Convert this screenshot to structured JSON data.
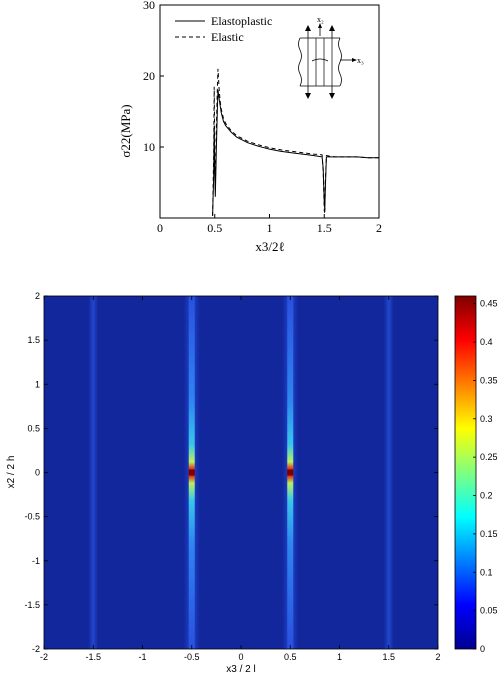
{
  "chart_data": [
    {
      "type": "line",
      "xlabel": "x3/2ℓ",
      "ylabel": "σ22(MPa)",
      "xlim": [
        0,
        2
      ],
      "ylim": [
        0,
        30
      ],
      "xticks": [
        "0",
        "0.5",
        "1",
        "1.5",
        "2"
      ],
      "yticks": [
        "10",
        "20",
        "30"
      ],
      "grid": false,
      "legend": "top-left",
      "series": [
        {
          "name": "Elastoplastic",
          "style": "solid",
          "x": [
            0.48,
            0.49,
            0.495,
            0.5,
            0.505,
            0.515,
            0.525,
            0.53,
            0.54,
            0.55,
            0.56,
            0.58,
            0.6,
            0.65,
            0.7,
            0.8,
            0.9,
            1.0,
            1.1,
            1.2,
            1.3,
            1.4,
            1.48,
            1.49,
            1.5,
            1.505,
            1.51,
            1.52,
            1.55,
            1.6,
            1.7,
            1.8,
            1.9,
            2.0
          ],
          "y": [
            0.3,
            6.0,
            13.0,
            6.0,
            3.0,
            10.0,
            16.0,
            18.0,
            16.8,
            15.8,
            14.8,
            13.6,
            13.0,
            12.1,
            11.4,
            10.6,
            10.1,
            9.7,
            9.4,
            9.2,
            9.0,
            8.8,
            8.6,
            7.0,
            2.0,
            1.2,
            4.0,
            8.6,
            8.6,
            8.6,
            8.6,
            8.6,
            8.5,
            8.5
          ]
        },
        {
          "name": "Elastic",
          "style": "dashed",
          "x": [
            0.48,
            0.49,
            0.495,
            0.5,
            0.505,
            0.515,
            0.525,
            0.53,
            0.54,
            0.55,
            0.56,
            0.58,
            0.6,
            0.65,
            0.7,
            0.8,
            0.9,
            1.0,
            1.1,
            1.2,
            1.3,
            1.4,
            1.48,
            1.49,
            1.5,
            1.505,
            1.51,
            1.52,
            1.55,
            1.6,
            1.7,
            1.8,
            1.9,
            2.0
          ],
          "y": [
            0.3,
            9.0,
            18.5,
            8.0,
            4.0,
            13.0,
            19.0,
            21.0,
            18.2,
            16.4,
            15.3,
            14.0,
            13.3,
            12.3,
            11.6,
            10.8,
            10.3,
            9.9,
            9.6,
            9.4,
            9.2,
            9.0,
            8.9,
            6.5,
            1.0,
            0.6,
            5.0,
            8.8,
            8.7,
            8.6,
            8.6,
            8.6,
            8.5,
            8.5
          ]
        }
      ],
      "inset": {
        "label_x2": "x₂",
        "label_x3": "x₃"
      }
    },
    {
      "type": "heatmap",
      "xlabel": "x3 / 2 l",
      "ylabel": "x2 / 2 h",
      "xlim": [
        -2,
        2
      ],
      "ylim": [
        -2,
        2
      ],
      "xticks": [
        "-2",
        "-1.5",
        "-1",
        "-0.5",
        "0",
        "0.5",
        "1",
        "1.5",
        "2"
      ],
      "yticks": [
        "-2",
        "-1.5",
        "-1",
        "-0.5",
        "0",
        "0.5",
        "1",
        "1.5",
        "2"
      ],
      "colorbar": {
        "min": 0,
        "max": 0.46,
        "ticks": [
          "0",
          "0.05",
          "0.1",
          "0.15",
          "0.2",
          "0.25",
          "0.3",
          "0.35",
          "0.4",
          "0.45"
        ]
      },
      "background_value": 0.05,
      "bands": [
        {
          "x": -1.5,
          "peak": 0.1
        },
        {
          "x": -0.5,
          "peak": 0.46
        },
        {
          "x": 0.5,
          "peak": 0.46
        },
        {
          "x": 1.5,
          "peak": 0.1
        }
      ]
    }
  ]
}
